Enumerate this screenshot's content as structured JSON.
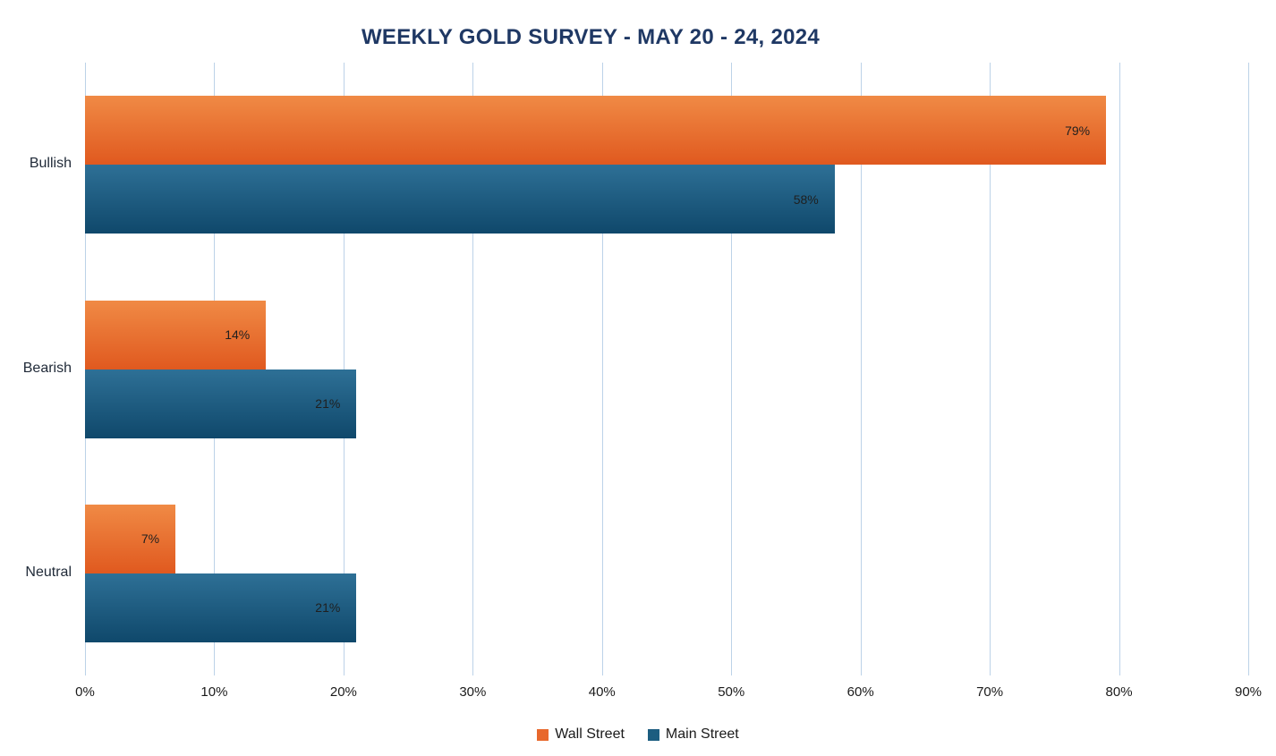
{
  "chart_data": {
    "type": "bar",
    "orientation": "horizontal",
    "title": "WEEKLY GOLD SURVEY - MAY 20 - 24, 2024",
    "categories": [
      "Bullish",
      "Bearish",
      "Neutral"
    ],
    "series": [
      {
        "name": "Wall Street",
        "values": [
          79,
          14,
          7
        ],
        "color_top": "#F08A45",
        "color_bottom": "#E0591F",
        "legend_color": "#E8682C"
      },
      {
        "name": "Main Street",
        "values": [
          58,
          21,
          21
        ],
        "color_top": "#2E7096",
        "color_bottom": "#0F486B",
        "legend_color": "#1C5D80"
      }
    ],
    "x_ticks": [
      "0%",
      "10%",
      "20%",
      "30%",
      "40%",
      "50%",
      "60%",
      "70%",
      "80%",
      "90%"
    ],
    "x_max": 90,
    "data_label_suffix": "%",
    "grid": "vertical",
    "legend_position": "bottom",
    "colors": {
      "title": "#1F3864",
      "gridline": "#BCD2E8",
      "text": "#1a1a1a"
    }
  }
}
